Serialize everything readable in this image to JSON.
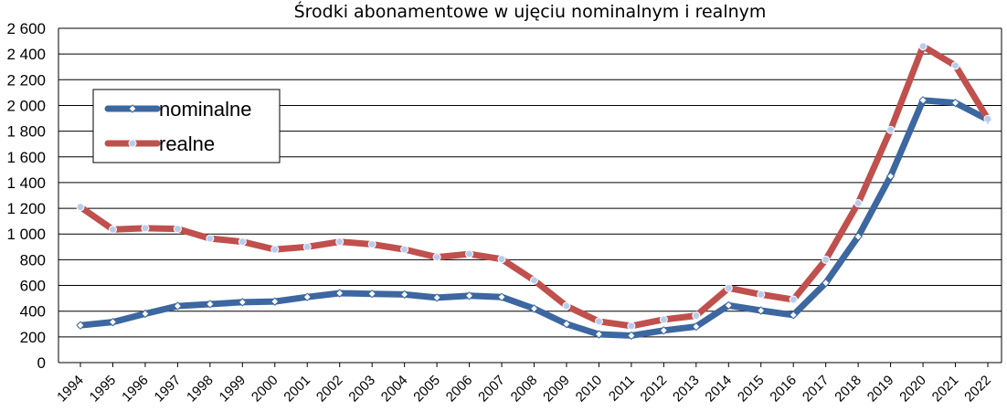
{
  "chart_data": {
    "type": "line",
    "title": "Środki abonamentowe w ujęciu nominalnym i realnym",
    "xlabel": "",
    "ylabel": "",
    "ylim": [
      0,
      2600
    ],
    "y_ticks": [
      0,
      200,
      400,
      600,
      800,
      1000,
      1200,
      1400,
      1600,
      1800,
      2000,
      2200,
      2400,
      2600
    ],
    "y_tick_labels": [
      "0",
      "200",
      "400",
      "600",
      "800",
      "1 000",
      "1 200",
      "1 400",
      "1 600",
      "1 800",
      "2 000",
      "2 200",
      "2 400",
      "2 600"
    ],
    "categories": [
      "1994",
      "1995",
      "1996",
      "1997",
      "1998",
      "1999",
      "2000",
      "2001",
      "2002",
      "2003",
      "2004",
      "2005",
      "2006",
      "2007",
      "2008",
      "2009",
      "2010",
      "2011",
      "2012",
      "2013",
      "2014",
      "2015",
      "2016",
      "2017",
      "2018",
      "2019",
      "2020",
      "2021",
      "2022"
    ],
    "grid": true,
    "legend_position": "top-left",
    "series": [
      {
        "name": "nominalne",
        "color": "#3c67a0",
        "marker": "diamond",
        "values": [
          290,
          315,
          380,
          440,
          455,
          470,
          475,
          510,
          540,
          535,
          530,
          505,
          520,
          510,
          420,
          300,
          220,
          210,
          250,
          280,
          445,
          405,
          370,
          620,
          980,
          1450,
          2040,
          2020,
          1890
        ]
      },
      {
        "name": "realne",
        "color": "#c0504d",
        "marker": "circle",
        "values": [
          1210,
          1035,
          1045,
          1040,
          965,
          940,
          880,
          900,
          940,
          920,
          880,
          820,
          845,
          805,
          640,
          440,
          320,
          285,
          335,
          365,
          580,
          530,
          490,
          800,
          1240,
          1810,
          2460,
          2310,
          1895
        ]
      }
    ]
  }
}
